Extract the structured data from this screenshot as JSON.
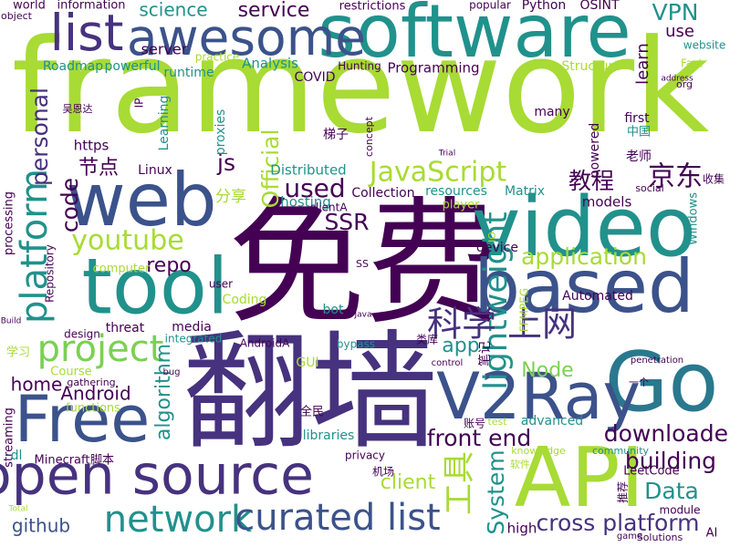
{
  "words": [
    "framework",
    "software",
    "免费",
    "翻墙",
    "video",
    "based",
    "tool",
    "web",
    "Go",
    "API",
    "V2Ray",
    "Free",
    "open source",
    "awesome",
    "list",
    "network",
    "curated list",
    "cross platform",
    "project",
    "platform",
    "personal",
    "lightweight",
    "科学 上网",
    "JavaScript",
    "京东",
    "youtube",
    "application",
    "downloader",
    "building",
    "Data",
    "front end",
    "Node",
    "Android",
    "home",
    "github",
    "SSR",
    "repo",
    "used",
    "code",
    "Official",
    "js",
    "VPN",
    "service",
    "science",
    "教程",
    "节点",
    "工具",
    "System",
    "algorithm",
    "app",
    "client",
    "Programming",
    "Analysis",
    "learn",
    "use",
    "Fast",
    "分享",
    "hosting",
    "Distributed",
    "Linux",
    "https",
    "models",
    "resources",
    "Matrix",
    "收集",
    "Windows",
    "Collection",
    "player",
    "device",
    "Automated",
    "FFMPEG",
    "笔记",
    "类库",
    "advanced",
    "LeetCode",
    "module",
    "Solutions",
    "AI",
    "high",
    "privacy",
    "机场",
    "libraries",
    "全民",
    "GUI",
    "bypass",
    "AndroidA",
    "media",
    "integrated",
    "threat",
    "design",
    "Coding",
    "user",
    "bot",
    "computer",
    "functions",
    "Minecraft",
    "脚本",
    "Course",
    "学习",
    "processing",
    "Repository",
    "streaming",
    "Roadmap",
    "powerful",
    "runtime",
    "server",
    "practice",
    "COVID",
    "Hunting",
    "restrictions",
    "information",
    "world",
    "popular",
    "Python",
    "OSINT",
    "Structure",
    "website",
    "many",
    "first",
    "中国",
    "老师",
    "梯子",
    "吴恩达",
    "object",
    "Learning",
    "proxies",
    "IP",
    "powered",
    "concept",
    "org",
    "SS",
    "IO",
    "账号",
    "软件",
    "knowledge",
    "community",
    "推荐",
    "clientA",
    "test",
    "social",
    "一个",
    "gathering",
    "bug",
    "control",
    "penetration",
    "Build",
    "dl",
    "Total",
    "Java",
    "Trial",
    "game",
    "address"
  ]
}
